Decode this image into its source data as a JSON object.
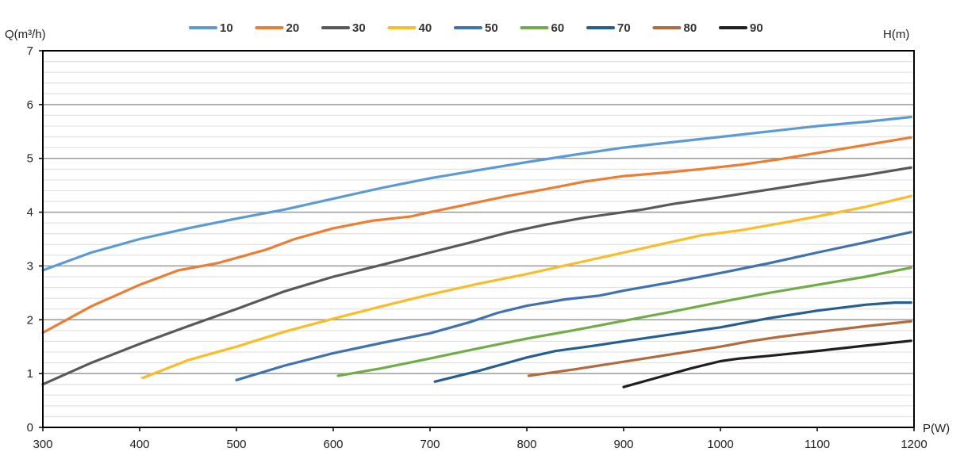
{
  "chart_data": {
    "type": "line",
    "ylabel": "Q(m³/h)",
    "xlabel": "P(W)",
    "right_label": "H(m)",
    "xlim": [
      300,
      1200
    ],
    "ylim": [
      0,
      7
    ],
    "x_ticks": [
      "300",
      "400",
      "500",
      "600",
      "700",
      "800",
      "900",
      "1000",
      "1100",
      "1200"
    ],
    "y_ticks": [
      "0",
      "1",
      "2",
      "3",
      "4",
      "5",
      "6",
      "7"
    ],
    "major_grid": true,
    "minor_grid_step": 0.2,
    "legend_position": "top",
    "series": [
      {
        "name": "10",
        "color": "#5b9bd5",
        "points": [
          [
            300,
            2.92
          ],
          [
            350,
            3.25
          ],
          [
            400,
            3.5
          ],
          [
            450,
            3.7
          ],
          [
            500,
            3.88
          ],
          [
            550,
            4.05
          ],
          [
            600,
            4.25
          ],
          [
            650,
            4.45
          ],
          [
            700,
            4.63
          ],
          [
            750,
            4.78
          ],
          [
            800,
            4.93
          ],
          [
            850,
            5.07
          ],
          [
            900,
            5.2
          ],
          [
            950,
            5.3
          ],
          [
            1000,
            5.4
          ],
          [
            1050,
            5.5
          ],
          [
            1100,
            5.6
          ],
          [
            1150,
            5.68
          ],
          [
            1197,
            5.77
          ]
        ]
      },
      {
        "name": "20",
        "color": "#ed7d31",
        "points": [
          [
            300,
            1.76
          ],
          [
            350,
            2.25
          ],
          [
            400,
            2.65
          ],
          [
            440,
            2.92
          ],
          [
            480,
            3.05
          ],
          [
            500,
            3.15
          ],
          [
            530,
            3.3
          ],
          [
            560,
            3.5
          ],
          [
            600,
            3.7
          ],
          [
            640,
            3.84
          ],
          [
            680,
            3.92
          ],
          [
            700,
            4.0
          ],
          [
            740,
            4.15
          ],
          [
            780,
            4.3
          ],
          [
            820,
            4.43
          ],
          [
            860,
            4.57
          ],
          [
            900,
            4.67
          ],
          [
            940,
            4.73
          ],
          [
            980,
            4.8
          ],
          [
            1020,
            4.88
          ],
          [
            1060,
            4.98
          ],
          [
            1100,
            5.1
          ],
          [
            1150,
            5.25
          ],
          [
            1197,
            5.39
          ]
        ]
      },
      {
        "name": "30",
        "color": "#595959",
        "points": [
          [
            300,
            0.8
          ],
          [
            350,
            1.2
          ],
          [
            400,
            1.55
          ],
          [
            450,
            1.88
          ],
          [
            500,
            2.2
          ],
          [
            550,
            2.53
          ],
          [
            600,
            2.8
          ],
          [
            650,
            3.02
          ],
          [
            700,
            3.25
          ],
          [
            740,
            3.43
          ],
          [
            780,
            3.62
          ],
          [
            820,
            3.77
          ],
          [
            860,
            3.9
          ],
          [
            900,
            4.0
          ],
          [
            920,
            4.05
          ],
          [
            950,
            4.15
          ],
          [
            1000,
            4.28
          ],
          [
            1050,
            4.42
          ],
          [
            1100,
            4.56
          ],
          [
            1150,
            4.69
          ],
          [
            1197,
            4.83
          ]
        ]
      },
      {
        "name": "40",
        "color": "#fbbc25",
        "points": [
          [
            403,
            0.92
          ],
          [
            450,
            1.25
          ],
          [
            500,
            1.5
          ],
          [
            550,
            1.78
          ],
          [
            600,
            2.02
          ],
          [
            650,
            2.25
          ],
          [
            700,
            2.47
          ],
          [
            750,
            2.67
          ],
          [
            800,
            2.85
          ],
          [
            850,
            3.05
          ],
          [
            900,
            3.25
          ],
          [
            950,
            3.45
          ],
          [
            980,
            3.57
          ],
          [
            1020,
            3.66
          ],
          [
            1070,
            3.82
          ],
          [
            1100,
            3.92
          ],
          [
            1150,
            4.1
          ],
          [
            1197,
            4.3
          ]
        ]
      },
      {
        "name": "50",
        "color": "#3f72af",
        "points": [
          [
            500,
            0.88
          ],
          [
            550,
            1.15
          ],
          [
            600,
            1.38
          ],
          [
            650,
            1.57
          ],
          [
            700,
            1.75
          ],
          [
            740,
            1.95
          ],
          [
            770,
            2.13
          ],
          [
            800,
            2.26
          ],
          [
            840,
            2.38
          ],
          [
            875,
            2.45
          ],
          [
            900,
            2.54
          ],
          [
            950,
            2.7
          ],
          [
            1000,
            2.87
          ],
          [
            1050,
            3.05
          ],
          [
            1100,
            3.25
          ],
          [
            1150,
            3.44
          ],
          [
            1197,
            3.63
          ]
        ]
      },
      {
        "name": "60",
        "color": "#70ad47",
        "points": [
          [
            605,
            0.96
          ],
          [
            650,
            1.1
          ],
          [
            700,
            1.28
          ],
          [
            750,
            1.47
          ],
          [
            800,
            1.65
          ],
          [
            850,
            1.81
          ],
          [
            900,
            1.98
          ],
          [
            950,
            2.15
          ],
          [
            1000,
            2.33
          ],
          [
            1050,
            2.5
          ],
          [
            1100,
            2.65
          ],
          [
            1150,
            2.8
          ],
          [
            1197,
            2.97
          ]
        ]
      },
      {
        "name": "70",
        "color": "#255e91",
        "points": [
          [
            705,
            0.85
          ],
          [
            750,
            1.05
          ],
          [
            800,
            1.3
          ],
          [
            830,
            1.42
          ],
          [
            870,
            1.52
          ],
          [
            900,
            1.6
          ],
          [
            950,
            1.73
          ],
          [
            1000,
            1.86
          ],
          [
            1050,
            2.03
          ],
          [
            1100,
            2.17
          ],
          [
            1150,
            2.28
          ],
          [
            1180,
            2.32
          ],
          [
            1197,
            2.32
          ]
        ]
      },
      {
        "name": "80",
        "color": "#b16b3c",
        "points": [
          [
            802,
            0.96
          ],
          [
            850,
            1.08
          ],
          [
            900,
            1.22
          ],
          [
            950,
            1.36
          ],
          [
            1000,
            1.5
          ],
          [
            1030,
            1.6
          ],
          [
            1060,
            1.68
          ],
          [
            1100,
            1.77
          ],
          [
            1150,
            1.88
          ],
          [
            1197,
            1.97
          ]
        ]
      },
      {
        "name": "90",
        "color": "#1f1f1f",
        "points": [
          [
            900,
            0.75
          ],
          [
            940,
            0.95
          ],
          [
            970,
            1.1
          ],
          [
            1000,
            1.23
          ],
          [
            1020,
            1.28
          ],
          [
            1050,
            1.33
          ],
          [
            1100,
            1.42
          ],
          [
            1150,
            1.52
          ],
          [
            1197,
            1.61
          ]
        ]
      }
    ]
  }
}
